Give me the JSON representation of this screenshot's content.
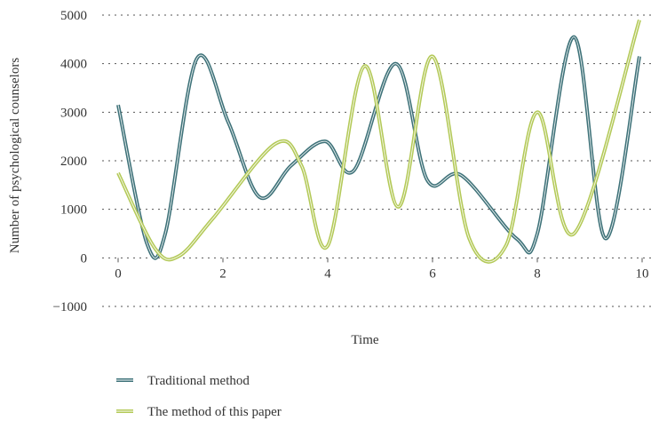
{
  "chart_data": {
    "type": "line",
    "xlabel": "Time",
    "ylabel": "Number of psychological counselors",
    "xlim": [
      0,
      10
    ],
    "ylim": [
      -1000,
      5000
    ],
    "x_ticks": [
      0,
      2,
      4,
      6,
      8,
      10
    ],
    "y_ticks": [
      -1000,
      0,
      1000,
      2000,
      3000,
      4000,
      5000
    ],
    "x_tick_labels": [
      "0",
      "2",
      "4",
      "6",
      "8",
      "10"
    ],
    "y_tick_labels": [
      "−1000",
      "0",
      "1000",
      "2000",
      "3000",
      "4000",
      "5000"
    ],
    "grid": "horizontal dotted",
    "legend_position": "bottom-left",
    "series": [
      {
        "name": "Traditional method",
        "color": "#3d7178",
        "x": [
          0.0,
          0.55,
          0.9,
          1.5,
          2.1,
          2.7,
          3.3,
          3.95,
          4.5,
          5.3,
          5.9,
          6.55,
          7.6,
          8.0,
          8.7,
          9.3,
          9.95
        ],
        "y": [
          3150,
          300,
          500,
          4100,
          2800,
          1250,
          1900,
          2400,
          1800,
          4000,
          1600,
          1700,
          400,
          500,
          4550,
          400,
          4150
        ]
      },
      {
        "name": "The method of this paper",
        "color": "#b3c957",
        "x": [
          0.0,
          0.7,
          1.15,
          1.8,
          3.0,
          3.5,
          4.0,
          4.7,
          5.35,
          6.0,
          6.7,
          7.4,
          8.0,
          8.7,
          9.95
        ],
        "y": [
          1750,
          200,
          30,
          800,
          2350,
          1900,
          250,
          3950,
          1050,
          4150,
          400,
          250,
          3000,
          500,
          4900
        ]
      }
    ]
  }
}
